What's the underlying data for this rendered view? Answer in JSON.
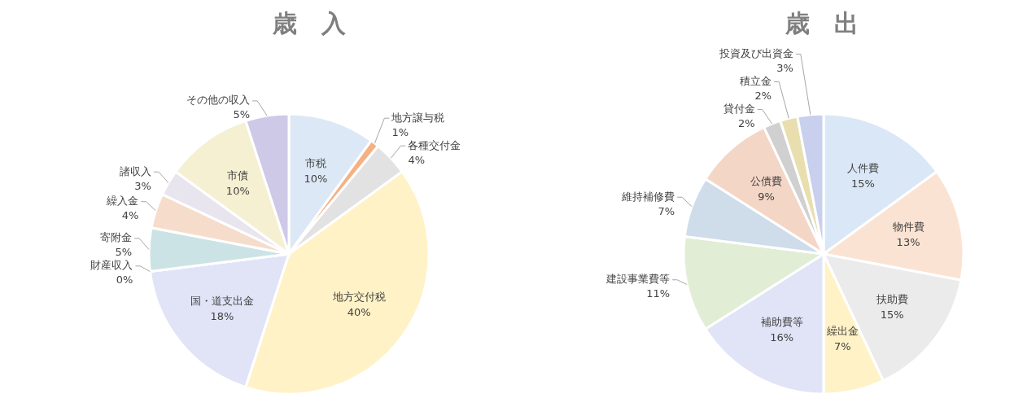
{
  "chart_data": [
    {
      "type": "pie",
      "title": "歳　入",
      "categories": [
        "市税",
        "地方譲与税",
        "各種交付金",
        "地方交付税",
        "国・道支出金",
        "財産収入",
        "寄附金",
        "繰入金",
        "諸収入",
        "市債",
        "その他の収入"
      ],
      "values": [
        10,
        1,
        4,
        40,
        18,
        0,
        5,
        4,
        3,
        10,
        5
      ],
      "value_labels": [
        "10%",
        "1%",
        "4%",
        "40%",
        "18%",
        "0%",
        "5%",
        "4%",
        "3%",
        "10%",
        "5%"
      ],
      "colors": [
        "#dce8f5",
        "#f4b183",
        "#e2e2e2",
        "#fff2c6",
        "#e1e4f7",
        "#dfe8d2",
        "#cce3e6",
        "#f6dccb",
        "#e9e5ef",
        "#f5f0d2",
        "#cfc9e8"
      ]
    },
    {
      "type": "pie",
      "title": "歳　出",
      "categories": [
        "人件費",
        "物件費",
        "扶助費",
        "繰出金",
        "補助費等",
        "建設事業費等",
        "維持補修費",
        "公債費",
        "貸付金",
        "積立金",
        "投資及び出資金"
      ],
      "values": [
        15,
        13,
        15,
        7,
        16,
        11,
        7,
        9,
        2,
        2,
        3
      ],
      "value_labels": [
        "15%",
        "13%",
        "15%",
        "7%",
        "16%",
        "11%",
        "7%",
        "9%",
        "2%",
        "2%",
        "3%"
      ],
      "colors": [
        "#dae7f6",
        "#fbe3d3",
        "#ebebeb",
        "#fff2c6",
        "#e1e4f7",
        "#e2edd6",
        "#cfdcea",
        "#f4d6c6",
        "#d0d0d0",
        "#e9dfae",
        "#c9d0ee"
      ]
    }
  ]
}
